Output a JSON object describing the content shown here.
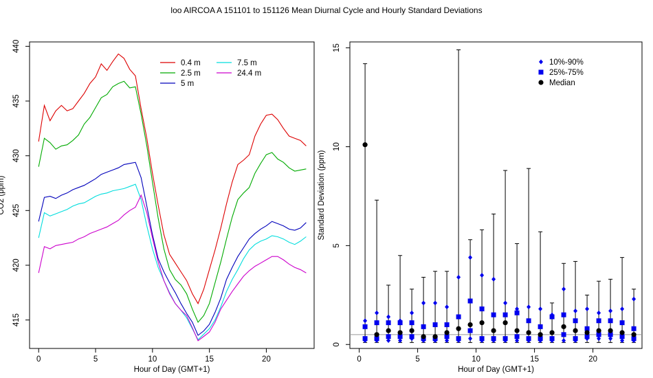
{
  "title": "loo   AIRCOA A   151101 to 151126   Mean Diurnal Cycle and Hourly Standard Deviations",
  "chart_data": [
    {
      "type": "line",
      "xlabel": "Hour of Day (GMT+1)",
      "ylabel": "CO2 (ppm)",
      "xlim": [
        -0.8,
        24.2
      ],
      "ylim": [
        412.4,
        440.4
      ],
      "xticks": [
        0,
        5,
        10,
        15,
        20
      ],
      "yticks": [
        415,
        420,
        425,
        430,
        435,
        440
      ],
      "legend": "top-right",
      "series": [
        {
          "name": "0.4 m",
          "color": "#dd0000",
          "x": [
            0,
            0.5,
            1,
            1.5,
            2,
            2.5,
            3,
            3.5,
            4,
            4.5,
            5,
            5.5,
            6,
            6.5,
            7,
            7.5,
            8,
            8.5,
            9,
            9.5,
            10,
            10.5,
            11,
            11.5,
            12,
            12.5,
            13,
            13.5,
            14,
            14.5,
            15,
            15.5,
            16,
            16.5,
            17,
            17.5,
            18,
            18.5,
            19,
            19.5,
            20,
            20.5,
            21,
            21.5,
            22,
            22.5,
            23,
            23.5
          ],
          "y": [
            431.3,
            434.6,
            433.2,
            434.1,
            434.6,
            434.1,
            434.3,
            435,
            435.7,
            436.6,
            437.2,
            438.4,
            437.8,
            438.6,
            439.3,
            438.9,
            437.9,
            437.3,
            434.3,
            431.6,
            428.4,
            425.5,
            422.8,
            421,
            420.2,
            419.4,
            418.6,
            417.4,
            416.5,
            417.8,
            419.6,
            421.4,
            423.4,
            425.6,
            427.6,
            429.2,
            429.6,
            430.1,
            431.8,
            432.9,
            433.7,
            433.8,
            433.3,
            432.5,
            431.8,
            431.6,
            431.4,
            430.9
          ]
        },
        {
          "name": "2.5 m",
          "color": "#00aa00",
          "x": [
            0,
            0.5,
            1,
            1.5,
            2,
            2.5,
            3,
            3.5,
            4,
            4.5,
            5,
            5.5,
            6,
            6.5,
            7,
            7.5,
            8,
            8.5,
            9,
            9.5,
            10,
            10.5,
            11,
            11.5,
            12,
            12.5,
            13,
            13.5,
            14,
            14.5,
            15,
            15.5,
            16,
            16.5,
            17,
            17.5,
            18,
            18.5,
            19,
            19.5,
            20,
            20.5,
            21,
            21.5,
            22,
            22.5,
            23,
            23.5
          ],
          "y": [
            429,
            431.6,
            431.2,
            430.6,
            430.9,
            431,
            431.4,
            431.9,
            432.9,
            433.5,
            434.4,
            435.3,
            435.6,
            436.3,
            436.6,
            436.8,
            436.2,
            436.3,
            433.8,
            430.9,
            427.6,
            424.3,
            421.5,
            419.6,
            418.7,
            418.2,
            417.4,
            416,
            414.8,
            415.4,
            416.5,
            418.4,
            420.3,
            422.4,
            424.4,
            426,
            426.6,
            427.1,
            428.4,
            429.3,
            430.1,
            430.3,
            429.7,
            429.4,
            428.9,
            428.6,
            428.7,
            428.8
          ]
        },
        {
          "name": "5 m",
          "color": "#0000bb",
          "x": [
            0,
            0.5,
            1,
            1.5,
            2,
            2.5,
            3,
            3.5,
            4,
            4.5,
            5,
            5.5,
            6,
            6.5,
            7,
            7.5,
            8,
            8.5,
            9,
            9.5,
            10,
            10.5,
            11,
            11.5,
            12,
            12.5,
            13,
            13.5,
            14,
            14.5,
            15,
            15.5,
            16,
            16.5,
            17,
            17.5,
            18,
            18.5,
            19,
            19.5,
            20,
            20.5,
            21,
            21.5,
            22,
            22.5,
            23,
            23.5
          ],
          "y": [
            424,
            426.2,
            426.3,
            426.1,
            426.4,
            426.6,
            426.9,
            427.1,
            427.3,
            427.6,
            427.9,
            428.3,
            428.5,
            428.7,
            428.9,
            429.2,
            429.3,
            429.4,
            428,
            425.4,
            422.8,
            420.6,
            419.4,
            418.4,
            417.5,
            416.5,
            415.6,
            414.8,
            413.6,
            414,
            414.6,
            415.7,
            417,
            418.7,
            419.8,
            420.8,
            421.6,
            422.4,
            422.9,
            423.3,
            423.6,
            424,
            423.8,
            423.6,
            423.3,
            423.2,
            423.4,
            423.9
          ]
        },
        {
          "name": "7.5 m",
          "color": "#00dddd",
          "x": [
            0,
            0.5,
            1,
            1.5,
            2,
            2.5,
            3,
            3.5,
            4,
            4.5,
            5,
            5.5,
            6,
            6.5,
            7,
            7.5,
            8,
            8.5,
            9,
            9.5,
            10,
            10.5,
            11,
            11.5,
            12,
            12.5,
            13,
            13.5,
            14,
            14.5,
            15,
            15.5,
            16,
            16.5,
            17,
            17.5,
            18,
            18.5,
            19,
            19.5,
            20,
            20.5,
            21,
            21.5,
            22,
            22.5,
            23,
            23.5
          ],
          "y": [
            422.5,
            424.8,
            424.5,
            424.7,
            424.9,
            425.1,
            425.4,
            425.6,
            425.7,
            426,
            426.3,
            426.5,
            426.6,
            426.8,
            426.9,
            427,
            427.2,
            427.4,
            426,
            423.6,
            421.5,
            419.8,
            418.6,
            417.5,
            416.5,
            415.9,
            415.2,
            414.2,
            413.2,
            413.7,
            414.2,
            415,
            416.2,
            417.6,
            418.7,
            419.6,
            420.6,
            421.4,
            421.9,
            422.2,
            422.4,
            422.7,
            422.6,
            422.4,
            422.1,
            421.9,
            422.2,
            422.6
          ]
        },
        {
          "name": "24.4 m",
          "color": "#cc00cc",
          "x": [
            0,
            0.5,
            1,
            1.5,
            2,
            2.5,
            3,
            3.5,
            4,
            4.5,
            5,
            5.5,
            6,
            6.5,
            7,
            7.5,
            8,
            8.5,
            9,
            9.5,
            10,
            10.5,
            11,
            11.5,
            12,
            12.5,
            13,
            13.5,
            14,
            14.5,
            15,
            15.5,
            16,
            16.5,
            17,
            17.5,
            18,
            18.5,
            19,
            19.5,
            20,
            20.5,
            21,
            21.5,
            22,
            22.5,
            23,
            23.5
          ],
          "y": [
            419.3,
            421.7,
            421.5,
            421.8,
            421.9,
            422,
            422.1,
            422.4,
            422.6,
            422.9,
            423.1,
            423.3,
            423.5,
            423.8,
            424.1,
            424.6,
            425,
            425.3,
            426.4,
            424.8,
            422.5,
            420.3,
            418.6,
            417.4,
            416.5,
            415.9,
            415.4,
            414.3,
            413.1,
            413.5,
            413.9,
            414.8,
            416,
            416.8,
            417.6,
            418.3,
            419,
            419.5,
            419.9,
            420.2,
            420.5,
            420.8,
            420.8,
            420.5,
            420.1,
            419.8,
            419.6,
            419.3
          ]
        }
      ]
    },
    {
      "type": "scatter",
      "xlabel": "Hour of Day (GMT+1)",
      "ylabel": "Standard Deviation (ppm)",
      "xlim": [
        -0.8,
        24.2
      ],
      "ylim": [
        -0.2,
        15.3
      ],
      "xticks": [
        0,
        5,
        10,
        15,
        20
      ],
      "yticks": [
        0,
        5,
        10,
        15
      ],
      "legend": "top-right",
      "legend_labels": [
        "10%-90%",
        "25%-75%",
        "Median"
      ],
      "marker_colors": {
        "p10_90": "#0000ee",
        "p25_75": "#0000ee",
        "median": "#000000"
      },
      "reference_line": 0.5,
      "hours": [
        0.5,
        1.5,
        2.5,
        3.5,
        4.5,
        5.5,
        6.5,
        7.5,
        8.5,
        9.5,
        10.5,
        11.5,
        12.5,
        13.5,
        14.5,
        15.5,
        16.5,
        17.5,
        18.5,
        19.5,
        20.5,
        21.5,
        22.5,
        23.5
      ],
      "whisker_low": [
        0.1,
        0.1,
        0.2,
        0.1,
        0.1,
        0.1,
        0.1,
        0.1,
        0.1,
        0.1,
        0.1,
        0.1,
        0.1,
        0.1,
        0.1,
        0.1,
        0.1,
        0.1,
        0.1,
        0.1,
        0.1,
        0.1,
        0.1,
        0.1
      ],
      "whisker_high": [
        14.2,
        7.3,
        3.0,
        4.5,
        2.8,
        3.4,
        3.7,
        3.7,
        14.9,
        5.3,
        5.8,
        6.6,
        8.8,
        5.1,
        8.9,
        5.7,
        2.1,
        4.1,
        4.2,
        2.5,
        3.2,
        3.3,
        4.4,
        2.8
      ],
      "p90": [
        1.2,
        1.6,
        1.4,
        1.2,
        1.6,
        2.1,
        2.1,
        1.9,
        3.4,
        4.4,
        3.5,
        3.3,
        2.1,
        1.8,
        1.9,
        1.8,
        1.5,
        2.8,
        1.7,
        1.8,
        1.6,
        1.7,
        1.8,
        2.3
      ],
      "p75": [
        0.9,
        1.1,
        1.1,
        1.1,
        1.1,
        0.9,
        1.0,
        1.0,
        1.4,
        2.2,
        1.8,
        1.5,
        1.5,
        1.6,
        1.2,
        0.9,
        1.4,
        1.5,
        1.2,
        0.8,
        1.2,
        1.2,
        1.1,
        0.8
      ],
      "median": [
        10.1,
        0.5,
        0.7,
        0.6,
        0.7,
        0.4,
        0.4,
        0.6,
        0.8,
        1.0,
        1.1,
        0.7,
        1.1,
        0.7,
        0.6,
        0.5,
        0.6,
        0.9,
        0.7,
        0.6,
        0.7,
        0.7,
        0.6,
        0.5
      ],
      "p25": [
        0.3,
        0.3,
        0.4,
        0.4,
        0.4,
        0.3,
        0.3,
        0.4,
        0.3,
        0.7,
        0.3,
        0.3,
        0.3,
        0.4,
        0.3,
        0.3,
        0.3,
        0.5,
        0.3,
        0.4,
        0.5,
        0.5,
        0.4,
        0.3
      ],
      "p10": [
        0.2,
        0.2,
        0.2,
        0.2,
        0.3,
        0.2,
        0.2,
        0.2,
        0.2,
        0.3,
        0.2,
        0.2,
        0.2,
        0.2,
        0.2,
        0.2,
        0.2,
        0.2,
        0.2,
        0.3,
        0.3,
        0.3,
        0.2,
        0.2
      ]
    }
  ]
}
